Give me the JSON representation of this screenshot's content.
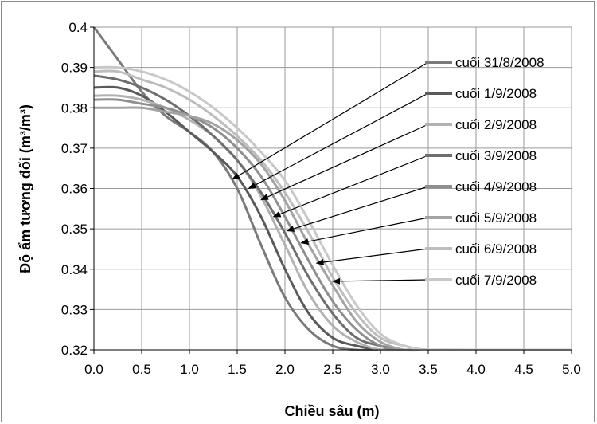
{
  "chart_data": {
    "type": "line",
    "title": "",
    "xlabel": "Chiều sâu (m)",
    "ylabel": "Độ ẩm tương đối (m³/m³)",
    "xlim": [
      0,
      5
    ],
    "ylim": [
      0.32,
      0.4
    ],
    "x_ticks": [
      0,
      0.5,
      1,
      1.5,
      2,
      2.5,
      3,
      3.5,
      4,
      4.5,
      5
    ],
    "x_tick_labels": [
      "0.0",
      "0.5",
      "1.0",
      "1.5",
      "2.0",
      "2.5",
      "3.0",
      "3.5",
      "4.0",
      "4.5",
      "5.0"
    ],
    "y_ticks": [
      0.32,
      0.33,
      0.34,
      0.35,
      0.36,
      0.37,
      0.38,
      0.39,
      0.4
    ],
    "y_tick_labels": [
      "0.32",
      "0.33",
      "0.34",
      "0.35",
      "0.36",
      "0.37",
      "0.38",
      "0.39",
      "0.4"
    ],
    "grid": true,
    "legend_position": "right, with arrows pointing to curves",
    "x": [
      0,
      0.25,
      0.5,
      0.75,
      1,
      1.25,
      1.5,
      1.75,
      2,
      2.25,
      2.5,
      2.75,
      3,
      3.25,
      3.5,
      4,
      4.5,
      5
    ],
    "series": [
      {
        "name": "cuối 31/8/2008",
        "color": "#7a7a7a",
        "values": [
          0.4,
          0.392,
          0.384,
          0.378,
          0.374,
          0.369,
          0.36,
          0.346,
          0.333,
          0.325,
          0.321,
          0.32,
          0.32,
          0.32,
          0.32,
          0.32,
          0.32,
          0.32
        ]
      },
      {
        "name": "cuối 1/9/2008",
        "color": "#5a5a5a",
        "values": [
          0.385,
          0.385,
          0.383,
          0.379,
          0.374,
          0.369,
          0.363,
          0.353,
          0.34,
          0.329,
          0.323,
          0.321,
          0.32,
          0.32,
          0.32,
          0.32,
          0.32,
          0.32
        ]
      },
      {
        "name": "cuối 2/9/2008",
        "color": "#b2b2b2",
        "values": [
          0.383,
          0.383,
          0.382,
          0.38,
          0.377,
          0.373,
          0.367,
          0.358,
          0.346,
          0.334,
          0.326,
          0.322,
          0.32,
          0.32,
          0.32,
          0.32,
          0.32,
          0.32
        ]
      },
      {
        "name": "cuối 3/9/2008",
        "color": "#6e6e6e",
        "values": [
          0.388,
          0.387,
          0.385,
          0.382,
          0.378,
          0.373,
          0.367,
          0.359,
          0.349,
          0.338,
          0.329,
          0.323,
          0.321,
          0.32,
          0.32,
          0.32,
          0.32,
          0.32
        ]
      },
      {
        "name": "cuối 4/9/2008",
        "color": "#8f8f8f",
        "values": [
          0.382,
          0.382,
          0.381,
          0.38,
          0.378,
          0.375,
          0.37,
          0.363,
          0.353,
          0.342,
          0.332,
          0.325,
          0.321,
          0.32,
          0.32,
          0.32,
          0.32,
          0.32
        ]
      },
      {
        "name": "cuối 5/9/2008",
        "color": "#a3a3a3",
        "values": [
          0.38,
          0.38,
          0.38,
          0.379,
          0.378,
          0.376,
          0.372,
          0.366,
          0.357,
          0.346,
          0.336,
          0.327,
          0.322,
          0.32,
          0.32,
          0.32,
          0.32,
          0.32
        ]
      },
      {
        "name": "cuối 6/9/2008",
        "color": "#bdbdbd",
        "values": [
          0.389,
          0.389,
          0.387,
          0.385,
          0.382,
          0.378,
          0.373,
          0.367,
          0.359,
          0.349,
          0.338,
          0.329,
          0.323,
          0.321,
          0.32,
          0.32,
          0.32,
          0.32
        ]
      },
      {
        "name": "cuối 7/9/2008",
        "color": "#c8c8c8",
        "values": [
          0.39,
          0.39,
          0.389,
          0.387,
          0.384,
          0.38,
          0.375,
          0.369,
          0.362,
          0.352,
          0.341,
          0.331,
          0.324,
          0.321,
          0.32,
          0.32,
          0.32,
          0.32
        ]
      }
    ],
    "arrow_targets": [
      {
        "x": 1.45,
        "y": 0.3623
      },
      {
        "x": 1.62,
        "y": 0.36
      },
      {
        "x": 1.75,
        "y": 0.3572
      },
      {
        "x": 1.88,
        "y": 0.353
      },
      {
        "x": 2.02,
        "y": 0.3495
      },
      {
        "x": 2.17,
        "y": 0.3465
      },
      {
        "x": 2.33,
        "y": 0.3415
      },
      {
        "x": 2.5,
        "y": 0.337
      }
    ]
  }
}
